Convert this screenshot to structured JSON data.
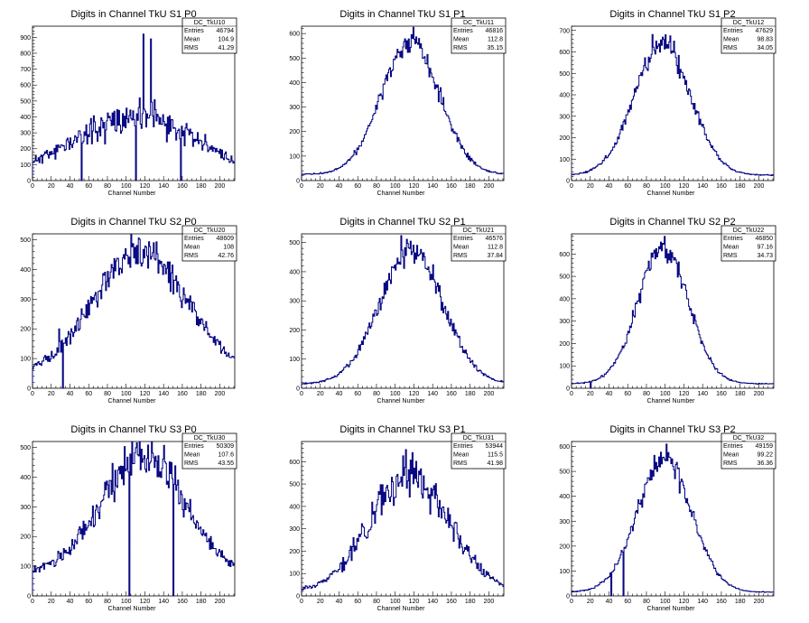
{
  "page": {
    "background": "#ffffff",
    "line_color": "#00007f"
  },
  "chart_data": [
    {
      "type": "histogram",
      "title": "Digits in Channel TkU S1 P0",
      "xlabel": "Channel Number",
      "ylabel": "",
      "xlim": [
        0,
        216
      ],
      "ylim": [
        0,
        970
      ],
      "xticks": [
        0,
        20,
        40,
        60,
        80,
        100,
        120,
        140,
        160,
        180,
        200
      ],
      "yticks": [
        0,
        100,
        200,
        300,
        400,
        500,
        600,
        700,
        800,
        900
      ],
      "shape": {
        "kind": "broad",
        "center": 110,
        "width": 62,
        "peak": 400,
        "floor": 30,
        "noise": 0.13,
        "seed": 11
      },
      "spikes": [
        {
          "x": 52,
          "y": 0
        },
        {
          "x": 58,
          "y": 230
        },
        {
          "x": 72,
          "y": 280
        },
        {
          "x": 110,
          "y": 0
        },
        {
          "x": 114,
          "y": 520
        },
        {
          "x": 118,
          "y": 920
        },
        {
          "x": 122,
          "y": 420
        },
        {
          "x": 126,
          "y": 890
        },
        {
          "x": 158,
          "y": 0
        }
      ],
      "stats": {
        "name": "DC_TkU10",
        "rows": [
          {
            "label": "Entries",
            "value": "46794"
          },
          {
            "label": "Mean",
            "value": "104.9"
          },
          {
            "label": "RMS",
            "value": "41.29"
          }
        ]
      }
    },
    {
      "type": "histogram",
      "title": "Digits in Channel TkU S1 P1",
      "xlabel": "Channel Number",
      "ylabel": "",
      "xlim": [
        0,
        216
      ],
      "ylim": [
        0,
        630
      ],
      "xticks": [
        0,
        20,
        40,
        60,
        80,
        100,
        120,
        140,
        160,
        180,
        200
      ],
      "yticks": [
        0,
        100,
        200,
        300,
        400,
        500,
        600
      ],
      "shape": {
        "kind": "gauss",
        "center": 116,
        "width": 31,
        "peak": 565,
        "floor": 25,
        "noise": 0.05,
        "seed": 12
      },
      "spikes": [],
      "stats": {
        "name": "DC_TkU11",
        "rows": [
          {
            "label": "Entries",
            "value": "46816"
          },
          {
            "label": "Mean",
            "value": "112.8"
          },
          {
            "label": "RMS",
            "value": "35.15"
          }
        ]
      }
    },
    {
      "type": "histogram",
      "title": "Digits in Channel TkU S1 P2",
      "xlabel": "Channel Number",
      "ylabel": "",
      "xlim": [
        0,
        216
      ],
      "ylim": [
        0,
        720
      ],
      "xticks": [
        0,
        20,
        40,
        60,
        80,
        100,
        120,
        140,
        160,
        180,
        200
      ],
      "yticks": [
        0,
        100,
        200,
        300,
        400,
        500,
        600,
        700
      ],
      "shape": {
        "kind": "gauss",
        "center": 97,
        "width": 30,
        "peak": 640,
        "floor": 25,
        "noise": 0.05,
        "seed": 13
      },
      "spikes": [],
      "stats": {
        "name": "DC_TkU12",
        "rows": [
          {
            "label": "Entries",
            "value": "47629"
          },
          {
            "label": "Mean",
            "value": "98.83"
          },
          {
            "label": "RMS",
            "value": "34.05"
          }
        ]
      }
    },
    {
      "type": "histogram",
      "title": "Digits in Channel TkU S2 P0",
      "xlabel": "Channel Number",
      "ylabel": "",
      "xlim": [
        0,
        216
      ],
      "ylim": [
        0,
        520
      ],
      "xticks": [
        0,
        20,
        40,
        60,
        80,
        100,
        120,
        140,
        160,
        180,
        200
      ],
      "yticks": [
        0,
        100,
        200,
        300,
        400,
        500
      ],
      "shape": {
        "kind": "broad",
        "center": 115,
        "width": 48,
        "peak": 455,
        "floor": 40,
        "noise": 0.07,
        "seed": 21
      },
      "spikes": [
        {
          "x": 28,
          "y": 200
        },
        {
          "x": 32,
          "y": 0
        }
      ],
      "stats": {
        "name": "DC_TkU20",
        "rows": [
          {
            "label": "Entries",
            "value": "48609"
          },
          {
            "label": "Mean",
            "value": "108"
          },
          {
            "label": "RMS",
            "value": "42.76"
          }
        ]
      }
    },
    {
      "type": "histogram",
      "title": "Digits in Channel TkU S2 P1",
      "xlabel": "Channel Number",
      "ylabel": "",
      "xlim": [
        0,
        216
      ],
      "ylim": [
        0,
        530
      ],
      "xticks": [
        0,
        20,
        40,
        60,
        80,
        100,
        120,
        140,
        160,
        180,
        200
      ],
      "yticks": [
        0,
        100,
        200,
        300,
        400,
        500
      ],
      "shape": {
        "kind": "gauss",
        "center": 117,
        "width": 34,
        "peak": 470,
        "floor": 15,
        "noise": 0.06,
        "seed": 22
      },
      "spikes": [],
      "stats": {
        "name": "DC_TkU21",
        "rows": [
          {
            "label": "Entries",
            "value": "46576"
          },
          {
            "label": "Mean",
            "value": "112.8"
          },
          {
            "label": "RMS",
            "value": "37.84"
          }
        ]
      }
    },
    {
      "type": "histogram",
      "title": "Digits in Channel TkU S2 P2",
      "xlabel": "Channel Number",
      "ylabel": "",
      "xlim": [
        0,
        216
      ],
      "ylim": [
        0,
        690
      ],
      "xticks": [
        0,
        20,
        40,
        60,
        80,
        100,
        120,
        140,
        160,
        180,
        200
      ],
      "yticks": [
        0,
        100,
        200,
        300,
        400,
        500,
        600
      ],
      "shape": {
        "kind": "gauss",
        "center": 98,
        "width": 27,
        "peak": 630,
        "floor": 20,
        "noise": 0.05,
        "seed": 23
      },
      "spikes": [
        {
          "x": 20,
          "y": 0
        }
      ],
      "stats": {
        "name": "DC_TkU22",
        "rows": [
          {
            "label": "Entries",
            "value": "46850"
          },
          {
            "label": "Mean",
            "value": "97.16"
          },
          {
            "label": "RMS",
            "value": "34.73"
          }
        ]
      }
    },
    {
      "type": "histogram",
      "title": "Digits in Channel TkU S3 P0",
      "xlabel": "Channel Number",
      "ylabel": "",
      "xlim": [
        0,
        216
      ],
      "ylim": [
        0,
        520
      ],
      "xticks": [
        0,
        20,
        40,
        60,
        80,
        100,
        120,
        140,
        160,
        180,
        200
      ],
      "yticks": [
        0,
        100,
        200,
        300,
        400,
        500
      ],
      "shape": {
        "kind": "broad",
        "center": 117,
        "width": 42,
        "peak": 470,
        "floor": 75,
        "noise": 0.08,
        "seed": 31
      },
      "spikes": [
        {
          "x": 103,
          "y": 0
        },
        {
          "x": 150,
          "y": 0
        }
      ],
      "stats": {
        "name": "DC_TkU30",
        "rows": [
          {
            "label": "Entries",
            "value": "50309"
          },
          {
            "label": "Mean",
            "value": "107.6"
          },
          {
            "label": "RMS",
            "value": "43.55"
          }
        ]
      }
    },
    {
      "type": "histogram",
      "title": "Digits in Channel TkU S3 P1",
      "xlabel": "Channel Number",
      "ylabel": "",
      "xlim": [
        0,
        216
      ],
      "ylim": [
        0,
        690
      ],
      "xticks": [
        0,
        20,
        40,
        60,
        80,
        100,
        120,
        140,
        160,
        180,
        200
      ],
      "yticks": [
        0,
        100,
        200,
        300,
        400,
        500,
        600
      ],
      "shape": {
        "kind": "broad",
        "center": 115,
        "width": 40,
        "peak": 540,
        "floor": 20,
        "noise": 0.1,
        "seed": 32
      },
      "spikes": [
        {
          "x": 118,
          "y": 640
        }
      ],
      "stats": {
        "name": "DC_TkU31",
        "rows": [
          {
            "label": "Entries",
            "value": "53944"
          },
          {
            "label": "Mean",
            "value": "115.5"
          },
          {
            "label": "RMS",
            "value": "41.98"
          }
        ]
      }
    },
    {
      "type": "histogram",
      "title": "Digits in Channel TkU S3 P2",
      "xlabel": "Channel Number",
      "ylabel": "",
      "xlim": [
        0,
        216
      ],
      "ylim": [
        0,
        620
      ],
      "xticks": [
        0,
        20,
        40,
        60,
        80,
        100,
        120,
        140,
        160,
        180,
        200
      ],
      "yticks": [
        0,
        100,
        200,
        300,
        400,
        500,
        600
      ],
      "shape": {
        "kind": "gauss",
        "center": 99,
        "width": 29,
        "peak": 550,
        "floor": 15,
        "noise": 0.05,
        "seed": 33
      },
      "spikes": [
        {
          "x": 42,
          "y": 0
        },
        {
          "x": 55,
          "y": 0
        }
      ],
      "stats": {
        "name": "DC_TkU32",
        "rows": [
          {
            "label": "Entries",
            "value": "49159"
          },
          {
            "label": "Mean",
            "value": "99.22"
          },
          {
            "label": "RMS",
            "value": "36.36"
          }
        ]
      }
    }
  ]
}
